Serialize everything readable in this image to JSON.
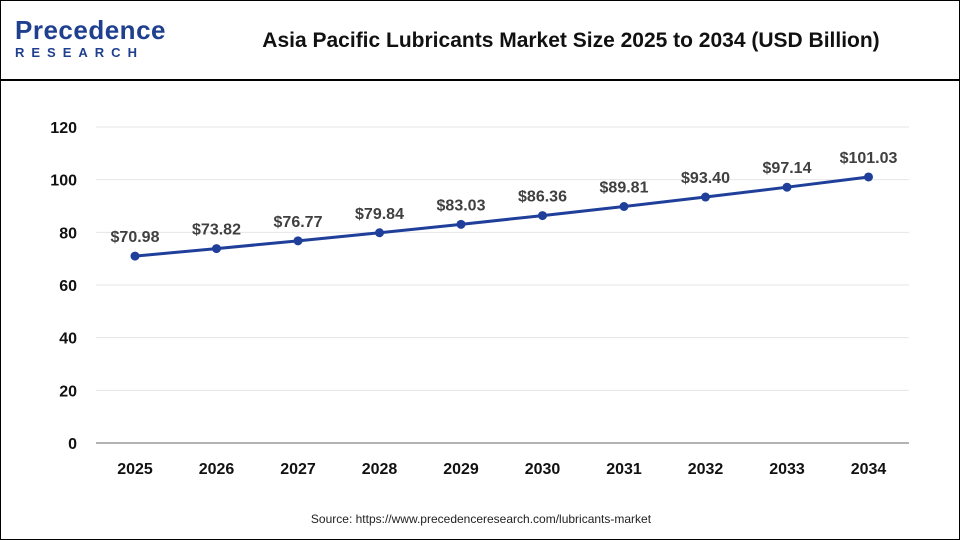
{
  "header": {
    "logo_top": "Precedence",
    "logo_bottom": "RESEARCH",
    "title": "Asia Pacific Lubricants Market Size 2025 to 2034 (USD Billion)"
  },
  "footer": {
    "source": "Source: https://www.precedenceresearch.com/lubricants-market"
  },
  "colors": {
    "line": "#1f3f9a",
    "point": "#1f3f9a",
    "brand": "#1f3f8f",
    "label": "#404040",
    "grid": "#e6e6e6"
  },
  "chart_data": {
    "type": "line",
    "title": "Asia Pacific Lubricants Market Size 2025 to 2034 (USD Billion)",
    "xlabel": "",
    "ylabel": "",
    "ylim": [
      0,
      120
    ],
    "yticks": [
      "0",
      "20",
      "40",
      "60",
      "80",
      "100",
      "120"
    ],
    "categories": [
      "2025",
      "2026",
      "2027",
      "2028",
      "2029",
      "2030",
      "2031",
      "2032",
      "2033",
      "2034"
    ],
    "values": [
      70.98,
      73.82,
      76.77,
      79.84,
      83.03,
      86.36,
      89.81,
      93.4,
      97.14,
      101.03
    ],
    "data_labels": [
      "$70.98",
      "$73.82",
      "$76.77",
      "$79.84",
      "$83.03",
      "$86.36",
      "$89.81",
      "$93.40",
      "$97.14",
      "$101.03"
    ],
    "grid": true,
    "legend": "none"
  }
}
